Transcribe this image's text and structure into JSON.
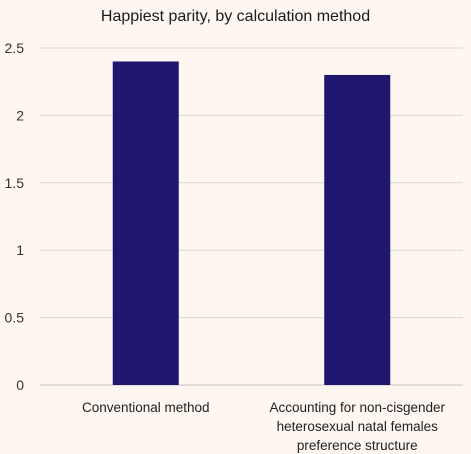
{
  "chart_data": {
    "type": "bar",
    "title": "Happiest parity, by calculation method",
    "categories": [
      [
        "Conventional method"
      ],
      [
        "Accounting for non-cisgender",
        "heterosexual natal females",
        "preference structure"
      ]
    ],
    "values": [
      2.4,
      2.3
    ],
    "ylim": [
      0,
      2.5
    ],
    "yticks": [
      "0",
      "0.5",
      "1",
      "1.5",
      "2",
      "2.5"
    ],
    "ytick_values": [
      0,
      0.5,
      1,
      1.5,
      2,
      2.5
    ],
    "bar_color": "#1f1670",
    "grid": true,
    "legend": "none"
  }
}
